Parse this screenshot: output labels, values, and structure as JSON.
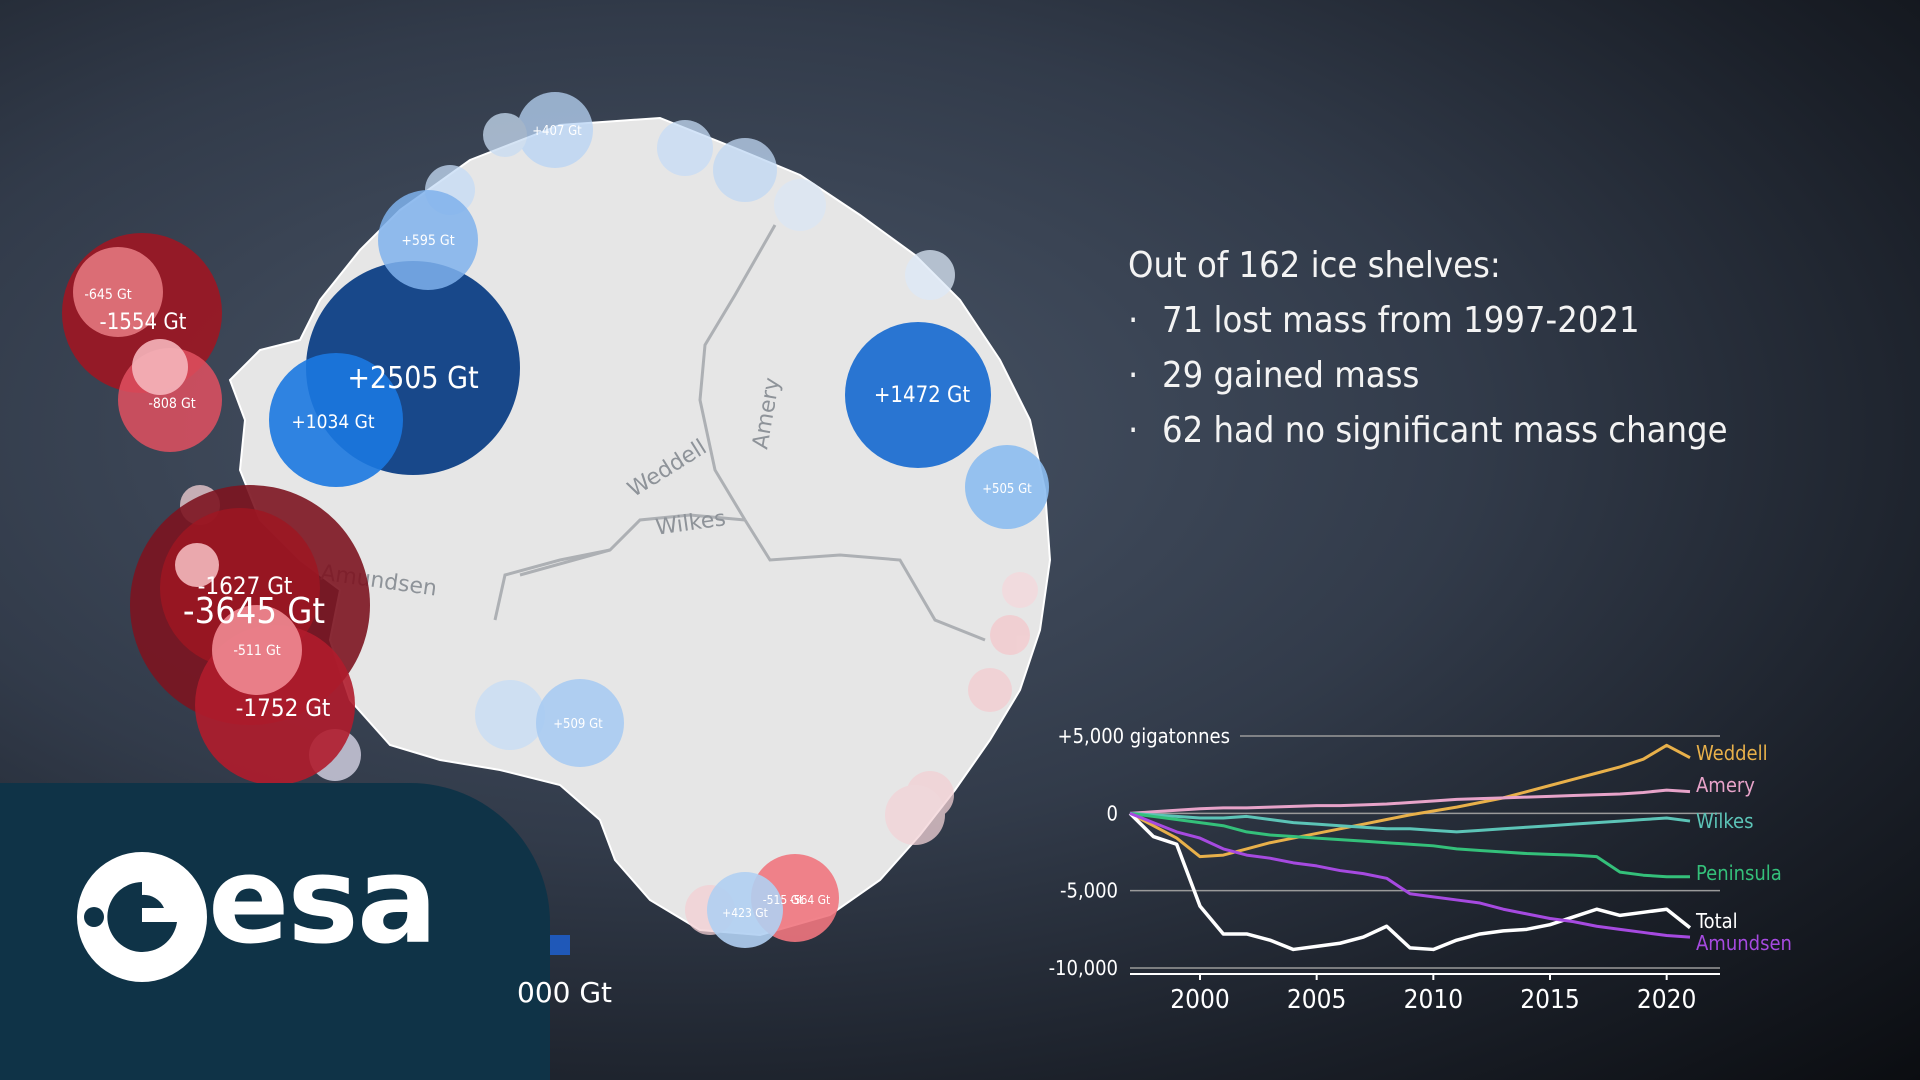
{
  "info": {
    "heading": "Out of 162 ice shelves:",
    "bullets": [
      "71 lost mass from 1997-2021",
      "29 gained mass",
      "62 had no significant mass change"
    ]
  },
  "map": {
    "region_labels": [
      "Weddell",
      "Amery",
      "Wilkes",
      "Amundsen"
    ],
    "shelf_labels": [
      "-645 Gt",
      "-1554 Gt",
      "-808 Gt",
      "+595 Gt",
      "+2505 Gt",
      "+1034 Gt",
      "+1472 Gt",
      "+505 Gt",
      "-1627 Gt",
      "-3645 Gt",
      "-511 Gt",
      "-1752 Gt",
      "+509 Gt",
      "+407 Gt",
      "+423 Gt",
      "-515 Gt",
      "-564 Gt"
    ],
    "scale_label": "000 Gt",
    "colors": {
      "gain": "#1f6fd1",
      "loss": "#9e1622",
      "ice": "#e8e8e8"
    }
  },
  "logo": {
    "text": "esa",
    "background": "#0f3347"
  },
  "chart_data": {
    "type": "line",
    "unit_label": "+5,000 gigatonnes",
    "y_tick_labels": [
      "+5,000 gigatonnes",
      "0",
      "-5,000",
      "-10,000"
    ],
    "y_ticks": [
      5000,
      0,
      -5000,
      -10000
    ],
    "ylim": [
      -10000,
      5000
    ],
    "xlim": [
      1997,
      2021
    ],
    "x_ticks": [
      2000,
      2005,
      2010,
      2015,
      2020
    ],
    "x_tick_labels": [
      "2000",
      "2005",
      "2010",
      "2015",
      "2020"
    ],
    "x": [
      1997,
      1998,
      1999,
      2000,
      2001,
      2002,
      2003,
      2004,
      2005,
      2006,
      2007,
      2008,
      2009,
      2010,
      2011,
      2012,
      2013,
      2014,
      2015,
      2016,
      2017,
      2018,
      2019,
      2020,
      2021
    ],
    "series": [
      {
        "name": "Weddell",
        "color": "#e8b04a",
        "values": [
          0,
          -800,
          -1600,
          -2800,
          -2700,
          -2300,
          -1900,
          -1600,
          -1300,
          -1000,
          -700,
          -400,
          -100,
          150,
          400,
          700,
          1000,
          1400,
          1800,
          2200,
          2600,
          3000,
          3500,
          4400,
          3600
        ]
      },
      {
        "name": "Amery",
        "color": "#e7a3c9",
        "values": [
          0,
          100,
          200,
          300,
          350,
          350,
          400,
          450,
          500,
          500,
          550,
          600,
          700,
          800,
          900,
          950,
          1000,
          1050,
          1100,
          1150,
          1200,
          1250,
          1350,
          1500,
          1400
        ]
      },
      {
        "name": "Wilkes",
        "color": "#5cc4b7",
        "values": [
          0,
          -100,
          -200,
          -300,
          -300,
          -200,
          -400,
          -600,
          -700,
          -800,
          -900,
          -1000,
          -1000,
          -1100,
          -1200,
          -1100,
          -1000,
          -900,
          -800,
          -700,
          -600,
          -500,
          -400,
          -300,
          -500
        ]
      },
      {
        "name": "Peninsula",
        "color": "#34c07a",
        "values": [
          0,
          -200,
          -400,
          -600,
          -800,
          -1200,
          -1400,
          -1500,
          -1600,
          -1700,
          -1800,
          -1900,
          -2000,
          -2100,
          -2300,
          -2400,
          -2500,
          -2600,
          -2650,
          -2700,
          -2800,
          -3800,
          -4000,
          -4100,
          -4100
        ]
      },
      {
        "name": "Total",
        "color": "#ffffff",
        "values": [
          0,
          -1500,
          -2000,
          -6000,
          -7800,
          -7800,
          -8200,
          -8800,
          -8600,
          -8400,
          -8000,
          -7300,
          -8700,
          -8800,
          -8200,
          -7800,
          -7600,
          -7500,
          -7200,
          -6700,
          -6200,
          -6600,
          -6400,
          -6200,
          -7400
        ]
      },
      {
        "name": "Amundsen",
        "color": "#a64ae0",
        "values": [
          0,
          -600,
          -1200,
          -1600,
          -2300,
          -2700,
          -2900,
          -3200,
          -3400,
          -3700,
          -3900,
          -4200,
          -5200,
          -5400,
          -5600,
          -5800,
          -6200,
          -6500,
          -6800,
          -7000,
          -7300,
          -7500,
          -7700,
          -7900,
          -8000
        ]
      }
    ]
  }
}
